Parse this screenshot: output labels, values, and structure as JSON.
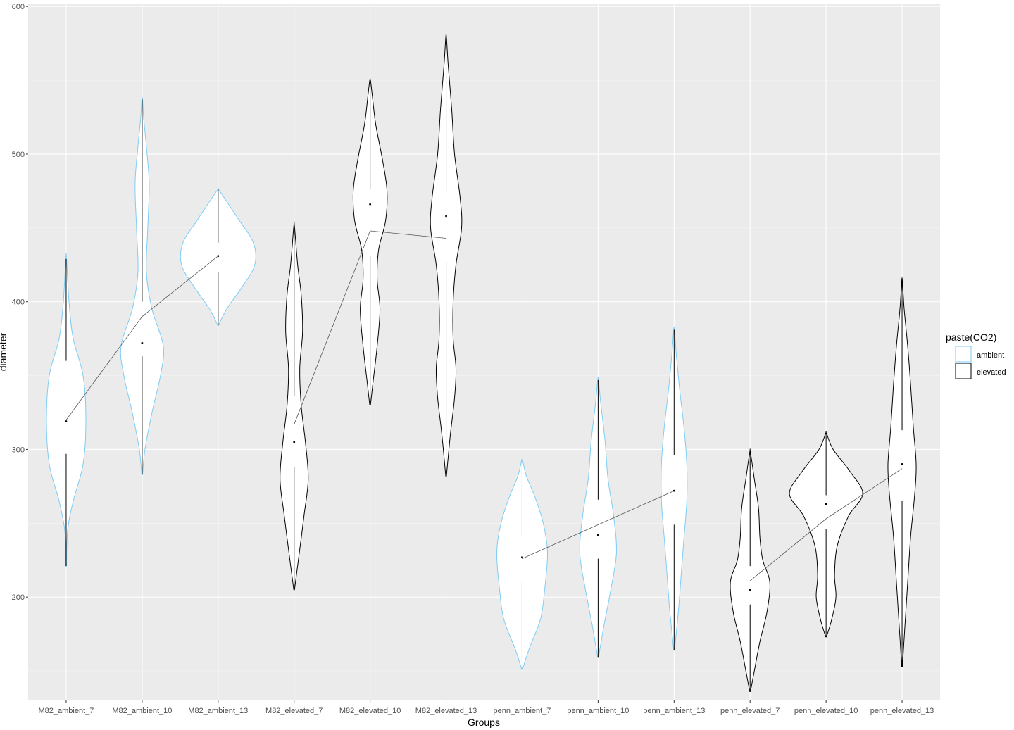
{
  "chart_data": {
    "type": "violin",
    "xlabel": "Groups",
    "ylabel": "diameter",
    "ylim": [
      130,
      602
    ],
    "yticks": [
      200,
      300,
      400,
      500,
      600
    ],
    "grid": true,
    "legend": {
      "title": "paste(CO2)",
      "placement": "right",
      "items": [
        {
          "label": "ambient",
          "color": "#7ecdf5"
        },
        {
          "label": "elevated",
          "color": "#000000"
        }
      ]
    },
    "categories": [
      "M82_ambient_7",
      "M82_ambient_10",
      "M82_ambient_13",
      "M82_elevated_7",
      "M82_elevated_10",
      "M82_elevated_13",
      "penn_ambient_7",
      "penn_ambient_10",
      "penn_ambient_13",
      "penn_elevated_7",
      "penn_elevated_10",
      "penn_elevated_13"
    ],
    "groups": [
      {
        "category": "M82_ambient_7",
        "co2": "ambient",
        "min": 221,
        "max": 429,
        "median": 319,
        "q1": 297,
        "q3": 360,
        "mean": 320,
        "profile": [
          [
            221,
            0.5
          ],
          [
            245,
            2
          ],
          [
            265,
            10
          ],
          [
            290,
            24
          ],
          [
            320,
            28
          ],
          [
            350,
            24
          ],
          [
            375,
            10
          ],
          [
            400,
            4
          ],
          [
            429,
            0.5
          ]
        ]
      },
      {
        "category": "M82_ambient_10",
        "co2": "ambient",
        "min": 283,
        "max": 537,
        "median": 372,
        "q1": 363,
        "q3": 400,
        "mean": 390,
        "profile": [
          [
            283,
            0.5
          ],
          [
            300,
            4
          ],
          [
            325,
            14
          ],
          [
            350,
            26
          ],
          [
            370,
            30
          ],
          [
            395,
            14
          ],
          [
            420,
            6
          ],
          [
            450,
            8
          ],
          [
            480,
            10
          ],
          [
            505,
            6
          ],
          [
            525,
            2
          ],
          [
            537,
            0.5
          ]
        ]
      },
      {
        "category": "M82_ambient_13",
        "co2": "ambient",
        "min": 384,
        "max": 476,
        "median": 431,
        "q1": 420,
        "q3": 440,
        "mean": 431,
        "profile": [
          [
            384,
            0.5
          ],
          [
            395,
            12
          ],
          [
            410,
            34
          ],
          [
            425,
            52
          ],
          [
            440,
            50
          ],
          [
            455,
            30
          ],
          [
            468,
            12
          ],
          [
            476,
            0.5
          ]
        ]
      },
      {
        "category": "M82_elevated_7",
        "co2": "elevated",
        "min": 205,
        "max": 451,
        "median": 305,
        "q1": 288,
        "q3": 336,
        "mean": 317,
        "profile": [
          [
            205,
            0.5
          ],
          [
            225,
            6
          ],
          [
            255,
            14
          ],
          [
            280,
            20
          ],
          [
            305,
            16
          ],
          [
            330,
            10
          ],
          [
            355,
            8
          ],
          [
            380,
            12
          ],
          [
            405,
            10
          ],
          [
            425,
            5
          ],
          [
            451,
            0.5
          ]
        ]
      },
      {
        "category": "M82_elevated_10",
        "co2": "elevated",
        "min": 330,
        "max": 550,
        "median": 466,
        "q1": 431,
        "q3": 476,
        "mean": 448,
        "profile": [
          [
            330,
            0.5
          ],
          [
            345,
            4
          ],
          [
            370,
            10
          ],
          [
            395,
            14
          ],
          [
            415,
            10
          ],
          [
            435,
            12
          ],
          [
            455,
            22
          ],
          [
            475,
            24
          ],
          [
            495,
            18
          ],
          [
            520,
            8
          ],
          [
            540,
            3
          ],
          [
            550,
            0.5
          ]
        ]
      },
      {
        "category": "M82_elevated_13",
        "co2": "elevated",
        "min": 282,
        "max": 579,
        "median": 458,
        "q1": 427,
        "q3": 475,
        "mean": 443,
        "profile": [
          [
            282,
            0.5
          ],
          [
            310,
            6
          ],
          [
            335,
            12
          ],
          [
            355,
            14
          ],
          [
            375,
            10
          ],
          [
            400,
            10
          ],
          [
            425,
            14
          ],
          [
            450,
            22
          ],
          [
            470,
            20
          ],
          [
            500,
            12
          ],
          [
            530,
            8
          ],
          [
            560,
            3
          ],
          [
            579,
            0.5
          ]
        ]
      },
      {
        "category": "penn_ambient_7",
        "co2": "ambient",
        "min": 151,
        "max": 293,
        "median": 227,
        "q1": 211,
        "q3": 241,
        "mean": 226,
        "profile": [
          [
            151,
            0.5
          ],
          [
            165,
            10
          ],
          [
            185,
            26
          ],
          [
            205,
            32
          ],
          [
            230,
            36
          ],
          [
            250,
            30
          ],
          [
            268,
            18
          ],
          [
            282,
            6
          ],
          [
            293,
            0.5
          ]
        ]
      },
      {
        "category": "penn_ambient_10",
        "co2": "ambient",
        "min": 159,
        "max": 347,
        "median": 242,
        "q1": 226,
        "q3": 266,
        "mean": 249,
        "profile": [
          [
            159,
            0.5
          ],
          [
            180,
            8
          ],
          [
            205,
            18
          ],
          [
            230,
            26
          ],
          [
            255,
            22
          ],
          [
            280,
            14
          ],
          [
            305,
            10
          ],
          [
            330,
            4
          ],
          [
            347,
            0.5
          ]
        ]
      },
      {
        "category": "penn_ambient_13",
        "co2": "ambient",
        "min": 164,
        "max": 381,
        "median": 272,
        "q1": 249,
        "q3": 296,
        "mean": 272,
        "profile": [
          [
            164,
            0.5
          ],
          [
            190,
            6
          ],
          [
            215,
            10
          ],
          [
            240,
            14
          ],
          [
            265,
            18
          ],
          [
            290,
            18
          ],
          [
            315,
            14
          ],
          [
            340,
            8
          ],
          [
            365,
            3
          ],
          [
            381,
            0.5
          ]
        ]
      },
      {
        "category": "penn_elevated_7",
        "co2": "elevated",
        "min": 136,
        "max": 298,
        "median": 205,
        "q1": 195,
        "q3": 221,
        "mean": 211,
        "profile": [
          [
            136,
            0.5
          ],
          [
            150,
            6
          ],
          [
            170,
            14
          ],
          [
            190,
            24
          ],
          [
            210,
            28
          ],
          [
            225,
            18
          ],
          [
            240,
            14
          ],
          [
            260,
            12
          ],
          [
            280,
            6
          ],
          [
            298,
            0.5
          ]
        ]
      },
      {
        "category": "penn_elevated_10",
        "co2": "elevated",
        "min": 173,
        "max": 311,
        "median": 263,
        "q1": 246,
        "q3": 269,
        "mean": 253,
        "profile": [
          [
            173,
            0.5
          ],
          [
            185,
            8
          ],
          [
            200,
            14
          ],
          [
            215,
            12
          ],
          [
            235,
            16
          ],
          [
            255,
            32
          ],
          [
            270,
            52
          ],
          [
            285,
            34
          ],
          [
            300,
            10
          ],
          [
            311,
            0.5
          ]
        ]
      },
      {
        "category": "penn_elevated_13",
        "co2": "elevated",
        "min": 153,
        "max": 414,
        "median": 290,
        "q1": 265,
        "q3": 313,
        "mean": 287,
        "profile": [
          [
            153,
            0.5
          ],
          [
            180,
            4
          ],
          [
            210,
            8
          ],
          [
            240,
            12
          ],
          [
            270,
            18
          ],
          [
            290,
            20
          ],
          [
            315,
            16
          ],
          [
            345,
            12
          ],
          [
            370,
            8
          ],
          [
            395,
            3
          ],
          [
            414,
            0.5
          ]
        ]
      }
    ],
    "mean_lines": [
      [
        "M82_ambient_7",
        "M82_ambient_10",
        "M82_ambient_13"
      ],
      [
        "M82_elevated_7",
        "M82_elevated_10",
        "M82_elevated_13"
      ],
      [
        "penn_ambient_7",
        "penn_ambient_10",
        "penn_ambient_13"
      ],
      [
        "penn_elevated_7",
        "penn_elevated_10",
        "penn_elevated_13"
      ]
    ]
  }
}
